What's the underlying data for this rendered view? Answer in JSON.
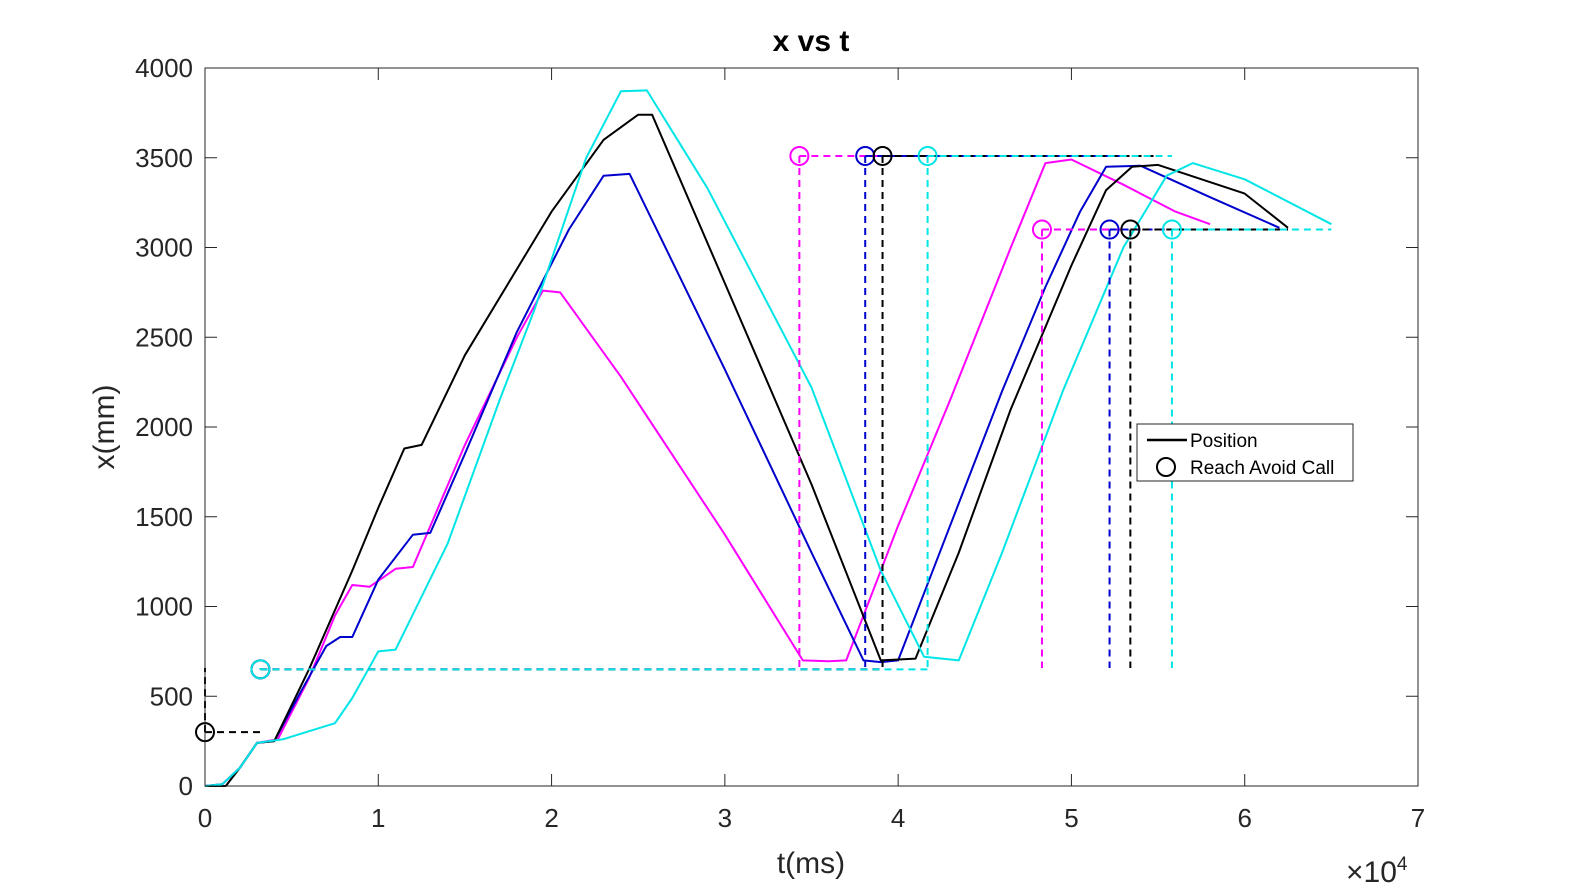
{
  "chart_data": {
    "type": "line",
    "title": "x vs t",
    "xlabel": "t(ms)",
    "ylabel": "x(mm)",
    "x_exponent_base": "×10",
    "x_exponent_power": "4",
    "xlim": [
      0,
      7
    ],
    "ylim": [
      0,
      4000
    ],
    "xticks": [
      0,
      1,
      2,
      3,
      4,
      5,
      6,
      7
    ],
    "yticks": [
      0,
      500,
      1000,
      1500,
      2000,
      2500,
      3000,
      3500,
      4000
    ],
    "xtick_labels": [
      "0",
      "1",
      "2",
      "3",
      "4",
      "5",
      "6",
      "7"
    ],
    "ytick_labels": [
      "0",
      "500",
      "1000",
      "1500",
      "2000",
      "2500",
      "3000",
      "3500",
      "4000"
    ],
    "grid": false,
    "legend": {
      "position": "right",
      "entries": [
        {
          "label": "Position",
          "marker": "line"
        },
        {
          "label": "Reach Avoid Call",
          "marker": "circle"
        }
      ]
    },
    "series": [
      {
        "name": "Position (magenta)",
        "color": "#ff00ff",
        "points": [
          [
            0,
            0
          ],
          [
            0.1,
            10
          ],
          [
            0.2,
            100
          ],
          [
            0.3,
            240
          ],
          [
            0.42,
            260
          ],
          [
            0.6,
            600
          ],
          [
            0.75,
            950
          ],
          [
            0.85,
            1120
          ],
          [
            0.95,
            1110
          ],
          [
            1.1,
            1210
          ],
          [
            1.2,
            1220
          ],
          [
            1.5,
            1900
          ],
          [
            1.8,
            2500
          ],
          [
            1.95,
            2760
          ],
          [
            2.05,
            2750
          ],
          [
            2.4,
            2280
          ],
          [
            3.0,
            1400
          ],
          [
            3.45,
            700
          ],
          [
            3.6,
            695
          ],
          [
            3.7,
            700
          ],
          [
            4.0,
            1450
          ],
          [
            4.3,
            2150
          ],
          [
            4.65,
            3000
          ],
          [
            4.85,
            3470
          ],
          [
            5.0,
            3490
          ],
          [
            5.3,
            3350
          ],
          [
            5.6,
            3200
          ],
          [
            5.8,
            3130
          ]
        ]
      },
      {
        "name": "Position (blue)",
        "color": "#0000cd",
        "points": [
          [
            0,
            0
          ],
          [
            0.1,
            10
          ],
          [
            0.2,
            100
          ],
          [
            0.3,
            240
          ],
          [
            0.4,
            250
          ],
          [
            0.55,
            520
          ],
          [
            0.7,
            780
          ],
          [
            0.78,
            830
          ],
          [
            0.85,
            830
          ],
          [
            1.0,
            1150
          ],
          [
            1.2,
            1400
          ],
          [
            1.3,
            1410
          ],
          [
            1.5,
            1850
          ],
          [
            1.8,
            2530
          ],
          [
            2.1,
            3100
          ],
          [
            2.3,
            3400
          ],
          [
            2.45,
            3410
          ],
          [
            3.0,
            2320
          ],
          [
            3.5,
            1300
          ],
          [
            3.8,
            700
          ],
          [
            3.9,
            690
          ],
          [
            4.0,
            700
          ],
          [
            4.3,
            1450
          ],
          [
            4.6,
            2200
          ],
          [
            4.85,
            2780
          ],
          [
            5.05,
            3200
          ],
          [
            5.2,
            3450
          ],
          [
            5.4,
            3455
          ],
          [
            5.8,
            3280
          ],
          [
            6.2,
            3110
          ]
        ]
      },
      {
        "name": "Position (black)",
        "color": "#000000",
        "points": [
          [
            0,
            0
          ],
          [
            0.12,
            0
          ],
          [
            0.2,
            100
          ],
          [
            0.3,
            240
          ],
          [
            0.4,
            250
          ],
          [
            0.6,
            650
          ],
          [
            0.85,
            1200
          ],
          [
            1.0,
            1550
          ],
          [
            1.15,
            1880
          ],
          [
            1.25,
            1900
          ],
          [
            1.5,
            2400
          ],
          [
            2.0,
            3200
          ],
          [
            2.3,
            3600
          ],
          [
            2.5,
            3740
          ],
          [
            2.58,
            3740
          ],
          [
            3.0,
            2800
          ],
          [
            3.5,
            1680
          ],
          [
            3.9,
            700
          ],
          [
            4.1,
            710
          ],
          [
            4.35,
            1300
          ],
          [
            4.65,
            2100
          ],
          [
            5.0,
            2900
          ],
          [
            5.2,
            3320
          ],
          [
            5.35,
            3450
          ],
          [
            5.5,
            3460
          ],
          [
            6.0,
            3300
          ],
          [
            6.25,
            3110
          ]
        ]
      },
      {
        "name": "Position (cyan)",
        "color": "#00e5e5",
        "points": [
          [
            0,
            0
          ],
          [
            0.1,
            10
          ],
          [
            0.2,
            100
          ],
          [
            0.3,
            240
          ],
          [
            0.45,
            260
          ],
          [
            0.65,
            320
          ],
          [
            0.75,
            350
          ],
          [
            0.85,
            490
          ],
          [
            1.0,
            750
          ],
          [
            1.1,
            760
          ],
          [
            1.4,
            1350
          ],
          [
            1.7,
            2150
          ],
          [
            1.9,
            2650
          ],
          [
            2.2,
            3500
          ],
          [
            2.4,
            3870
          ],
          [
            2.55,
            3875
          ],
          [
            2.9,
            3330
          ],
          [
            3.5,
            2220
          ],
          [
            3.9,
            1200
          ],
          [
            4.15,
            720
          ],
          [
            4.35,
            700
          ],
          [
            4.6,
            1300
          ],
          [
            4.95,
            2200
          ],
          [
            5.3,
            3000
          ],
          [
            5.55,
            3400
          ],
          [
            5.7,
            3470
          ],
          [
            6.0,
            3380
          ],
          [
            6.5,
            3130
          ]
        ]
      }
    ],
    "reach_avoid_calls": [
      {
        "color": "#ff00ff",
        "events": [
          {
            "t": 0.32,
            "x": 650,
            "t_end": 3.9
          },
          {
            "t": 3.43,
            "x": 3510,
            "t_end": 5.3
          },
          {
            "t": 4.83,
            "x": 3100,
            "t_end": 5.3
          }
        ]
      },
      {
        "color": "#0000cd",
        "events": [
          {
            "t": 0.32,
            "x": 650,
            "t_end": 3.9
          },
          {
            "t": 3.81,
            "x": 3510,
            "t_end": 5.3
          },
          {
            "t": 5.22,
            "x": 3100,
            "t_end": 6.25
          }
        ]
      },
      {
        "color": "#000000",
        "events": [
          {
            "t": 0.0,
            "x": 300,
            "t_end": 0.32
          },
          {
            "t": 0.32,
            "x": 650,
            "t_end": 3.9
          },
          {
            "t": 3.91,
            "x": 3510,
            "t_end": 5.5
          },
          {
            "t": 5.34,
            "x": 3100,
            "t_end": 6.25
          }
        ]
      },
      {
        "color": "#00e5e5",
        "events": [
          {
            "t": 0.32,
            "x": 650,
            "t_end": 4.17
          },
          {
            "t": 4.17,
            "x": 3510,
            "t_end": 5.58
          },
          {
            "t": 5.58,
            "x": 3100,
            "t_end": 6.5
          }
        ]
      }
    ]
  }
}
